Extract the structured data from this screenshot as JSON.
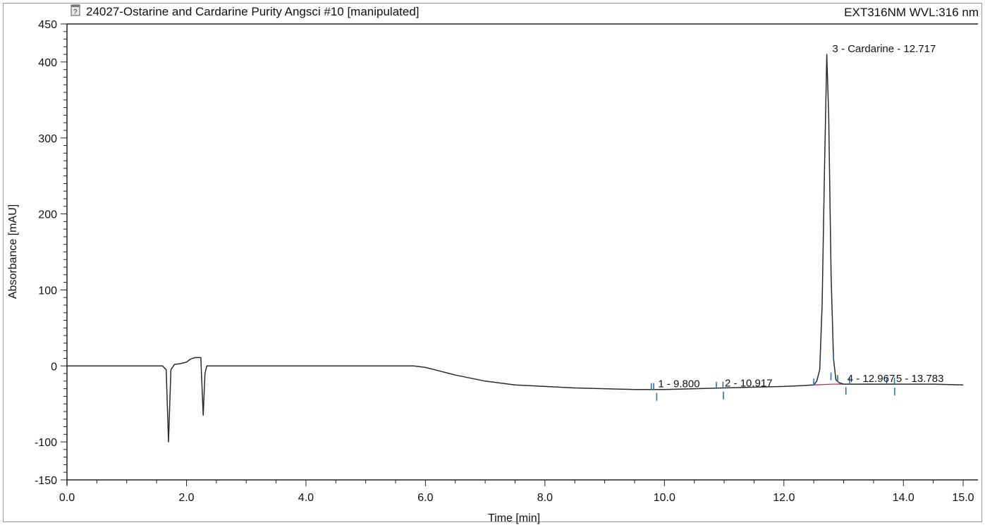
{
  "header": {
    "title": "24027-Ostarine and Cardarine Purity Angsci #10 [manipulated]",
    "channel": "EXT316NM WVL:316 nm",
    "file_icon": "document-icon"
  },
  "chart_data": {
    "type": "line",
    "xlabel": "Time [min]",
    "ylabel": "Absorbance [mAU]",
    "xlim": [
      0,
      15
    ],
    "ylim": [
      -150,
      450
    ],
    "xticks": [
      "0.0",
      "2.0",
      "4.0",
      "6.0",
      "8.0",
      "10.0",
      "12.0",
      "14.0",
      "15.0"
    ],
    "yticks": [
      "450",
      "400",
      "300",
      "200",
      "100",
      "0",
      "-100",
      "-150"
    ],
    "grid": false,
    "series": [
      {
        "color": "#2a2a2a",
        "x": [
          0.0,
          0.5,
          1.0,
          1.5,
          1.6,
          1.66,
          1.7,
          1.74,
          1.8,
          1.9,
          2.0,
          2.05,
          2.1,
          2.15,
          2.2,
          2.24,
          2.28,
          2.31,
          2.34,
          2.38,
          2.5,
          3.0,
          4.0,
          5.0,
          5.8,
          6.0,
          6.2,
          6.5,
          7.0,
          7.5,
          8.0,
          8.5,
          9.0,
          9.5,
          10.0,
          10.5,
          11.0,
          11.5,
          12.0,
          12.3,
          12.5,
          12.55,
          12.6,
          12.64,
          12.68,
          12.717,
          12.75,
          12.79,
          12.83,
          12.87,
          12.92,
          13.0,
          13.5,
          14.0,
          14.5,
          15.0
        ],
        "y": [
          0,
          0,
          0,
          0,
          0,
          -5,
          -100,
          -5,
          2,
          3,
          5,
          8,
          10,
          11,
          11,
          11,
          -65,
          -10,
          0,
          0,
          0,
          0,
          0,
          0,
          0,
          -2,
          -6,
          -12,
          -20,
          -25,
          -27,
          -29,
          -30,
          -31,
          -31,
          -30,
          -29,
          -28,
          -27,
          -26,
          -25,
          -20,
          -5,
          80,
          260,
          410,
          330,
          120,
          10,
          -18,
          -22,
          -24,
          -24,
          -24,
          -24,
          -25
        ]
      }
    ],
    "baselines": [
      {
        "x": [
          12.5,
          12.83
        ],
        "y": [
          -25,
          -24
        ]
      },
      {
        "x": [
          12.83,
          13.1
        ],
        "y": [
          -24,
          -24
        ]
      },
      {
        "x": [
          13.1,
          13.83
        ],
        "y": [
          -24,
          -24
        ]
      }
    ],
    "peak_markers": [
      9.8,
      10.917,
      12.717,
      12.967,
      13.783
    ],
    "baseline_markers": [
      9.78,
      9.82,
      10.87,
      10.98,
      12.5,
      12.83,
      12.9,
      13.1,
      13.72,
      13.85
    ],
    "annotations": [
      {
        "text": "1 - 9.800",
        "x": 9.8,
        "y": -31
      },
      {
        "text": "2 - 10.917",
        "x": 10.917,
        "y": -30
      },
      {
        "text": "3 - Cardarine - 12.717",
        "x": 12.717,
        "y": 410
      },
      {
        "text": "4 - 12.967",
        "x": 12.967,
        "y": -24
      },
      {
        "text": "5 - 13.783",
        "x": 13.783,
        "y": -24
      }
    ],
    "colors": {
      "trace": "#2a2a2a",
      "baseline": "#d0245a",
      "peak_marker": "#2f6fb5",
      "baseline_marker": "#8b2a4a"
    }
  }
}
